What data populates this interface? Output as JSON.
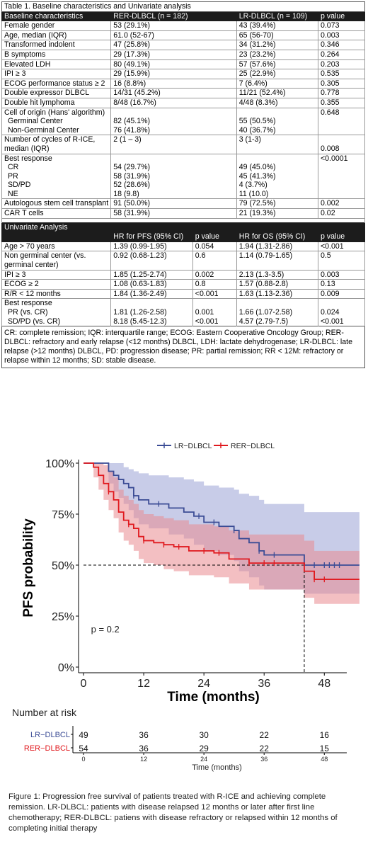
{
  "table": {
    "title": "Table 1. Baseline characteristics and Univariate analysis",
    "baseline_header": [
      "Baseline characteristics",
      "RER-DLBCL  (n = 182)",
      "LR-DLBCL  (n = 109)",
      "p value"
    ],
    "baseline_rows": [
      [
        "Female gender",
        "53 (29.1%)",
        "43 (39.4%)",
        "0.073"
      ],
      [
        "Age, median (IQR)",
        "61.0 (52-67)",
        "65 (56-70)",
        "0.003"
      ],
      [
        "Transformed indolent",
        "47 (25.8%)",
        "34 (31.2%)",
        "0.346"
      ],
      [
        "B symptoms",
        "29 (17.3%)",
        "23 (23.2%)",
        "0.264"
      ],
      [
        "Elevated LDH",
        "80 (49.1%)",
        "57 (57.6%)",
        "0.203"
      ],
      [
        "IPI ≥ 3",
        "29 (15.9%)",
        "25 (22.9%)",
        "0.535"
      ],
      [
        "ECOG performance status ≥ 2",
        "16 (8.8%)",
        "7 (6.4%)",
        "0.305"
      ],
      [
        "Double expressor DLBCL",
        "14/31 (45.2%)",
        "11/21 (52.4%)",
        "0.778"
      ],
      [
        "Double hit lymphoma",
        "8/48 (16.7%)",
        "4/48 (8.3%)",
        "0.355"
      ]
    ],
    "cell_origin": {
      "label": "Cell of origin (Hans' algorithm)",
      "p": "0.648",
      "rows": [
        [
          "Germinal Center",
          "82 (45.1%)",
          "55 (50.5%)"
        ],
        [
          "Non-Germinal Center",
          "76 (41.8%)",
          "40 (36.7%)"
        ]
      ]
    },
    "cycles": [
      "Number  of cycles of R-ICE, median (IQR)",
      "2 (1 – 3)",
      "3 (1-3)",
      "0.008"
    ],
    "best_response": {
      "label": "Best response",
      "p": "<0.0001",
      "rows": [
        [
          "CR",
          "54 (29.7%)",
          "49 (45.0%)"
        ],
        [
          "PR",
          "58 (31.9%)",
          "45 (41.3%)"
        ],
        [
          "SD/PD",
          "52 (28.6%)",
          "4 (3.7%)"
        ],
        [
          "NE",
          "18 (9.8)",
          "11 (10.0)"
        ]
      ]
    },
    "tail_rows": [
      [
        "Autologous stem cell transplant",
        "91 (50.0%)",
        "79 (72.5%)",
        "0.002"
      ],
      [
        "CAR T cells",
        "58 (31.9%)",
        "21 (19.3%)",
        "0.02"
      ]
    ],
    "uni_title": "Univariate Analysis",
    "uni_header": [
      "",
      "HR for PFS (95% CI)",
      "p value",
      "HR for OS (95% CI)",
      "p value"
    ],
    "uni_rows": [
      [
        "Age  > 70 years",
        "1.39 (0.99-1.95)",
        "0.054",
        "1.94 (1.31-2.86)",
        "<0.001"
      ],
      [
        "Non germinal center (vs. germinal center)",
        "0.92 (0.68-1.23)",
        "0.6",
        "1.14 (0.79-1.65)",
        "0.5"
      ],
      [
        "IPI ≥ 3",
        "1.85 (1.25-2.74)",
        "0.002",
        "2.13 (1.3-3.5)",
        "0.003"
      ],
      [
        "ECOG ≥ 2",
        "1.08 (0.63-1.83)",
        "0.8",
        "1.57 (0.88-2.8)",
        "0.13"
      ],
      [
        "R/R < 12 months",
        "1.84 (1.36-2.49)",
        "<0.001",
        "1.63 (1.13-2.36)",
        "0.009"
      ]
    ],
    "uni_best": {
      "label": "Best response",
      "rows": [
        [
          "PR (vs. CR)",
          "1.81 (1.26-2.58)",
          "0.001",
          "1.66 (1.07-2.58)",
          "0.024"
        ],
        [
          "SD/PD (vs. CR)",
          "8.18 (5.45-12.3)",
          "<0.001",
          "4.57 (2.79-7.5)",
          "<0.001"
        ]
      ]
    },
    "footnote": "CR: complete remission; IQR: interquartile range; ECOG:  Eastern Cooperative Oncology Group; RER-DLBCL:  refractory and early relapse (<12 months) DLBCL, LDH:  lactate dehydrogenase; LR-DLBCL:  late relapse (>12 months) DLBCL, PD: progression disease; PR: partial remission; RR < 12M: refractory or relapse within 12 months; SD: stable disease."
  },
  "chart_data": {
    "type": "line",
    "step": true,
    "xlabel": "Time (months)",
    "ylabel": "PFS probability",
    "xlim": [
      0,
      56
    ],
    "ylim": [
      0,
      1
    ],
    "x_ticks": [
      0,
      12,
      24,
      36,
      48
    ],
    "y_ticks": [
      0,
      0.25,
      0.5,
      0.75,
      1.0
    ],
    "y_tick_labels": [
      "0%",
      "25%",
      "50%",
      "75%",
      "100%"
    ],
    "legend_position": "top",
    "annotation": "p = 0.2",
    "median_reference": {
      "y": 0.5,
      "x": 44
    },
    "series": [
      {
        "name": "LR−DLBCL",
        "color": "#3b4c95",
        "band_color": "#9aa3d6",
        "x": [
          0,
          4,
          5,
          6,
          7,
          8,
          9,
          10,
          11,
          13,
          17,
          20,
          22,
          24,
          27,
          30,
          31,
          33,
          35,
          36,
          44,
          55
        ],
        "y": [
          1.0,
          1.0,
          0.96,
          0.94,
          0.92,
          0.9,
          0.88,
          0.84,
          0.82,
          0.8,
          0.78,
          0.76,
          0.74,
          0.71,
          0.69,
          0.67,
          0.63,
          0.61,
          0.57,
          0.55,
          0.5,
          0.5
        ],
        "lower": [
          1.0,
          1.0,
          0.9,
          0.86,
          0.83,
          0.8,
          0.77,
          0.73,
          0.7,
          0.68,
          0.65,
          0.63,
          0.6,
          0.57,
          0.55,
          0.52,
          0.47,
          0.44,
          0.4,
          0.38,
          0.36,
          0.36
        ],
        "upper": [
          1.0,
          1.0,
          1.0,
          1.0,
          1.0,
          0.98,
          0.97,
          0.96,
          0.95,
          0.94,
          0.93,
          0.92,
          0.91,
          0.89,
          0.88,
          0.87,
          0.85,
          0.84,
          0.82,
          0.8,
          0.76,
          0.68
        ],
        "censor_x": [
          10,
          15,
          23,
          26,
          30,
          35,
          38,
          46,
          48,
          49,
          50,
          51
        ]
      },
      {
        "name": "RER−DLBCL",
        "color": "#e0191e",
        "band_color": "#ea8a90",
        "x": [
          0,
          2,
          3,
          4,
          5,
          6,
          7,
          8,
          9,
          10,
          11,
          12,
          14,
          16,
          18,
          21,
          26,
          29,
          33,
          36,
          44,
          46,
          55
        ],
        "y": [
          1.0,
          0.98,
          0.94,
          0.9,
          0.86,
          0.82,
          0.76,
          0.72,
          0.7,
          0.68,
          0.64,
          0.62,
          0.61,
          0.6,
          0.59,
          0.57,
          0.56,
          0.53,
          0.51,
          0.51,
          0.47,
          0.43,
          0.43
        ],
        "lower": [
          1.0,
          0.93,
          0.87,
          0.82,
          0.77,
          0.73,
          0.66,
          0.62,
          0.6,
          0.57,
          0.53,
          0.51,
          0.5,
          0.48,
          0.47,
          0.45,
          0.44,
          0.41,
          0.38,
          0.38,
          0.34,
          0.31,
          0.31
        ],
        "upper": [
          1.0,
          1.0,
          1.0,
          0.99,
          0.96,
          0.93,
          0.87,
          0.84,
          0.82,
          0.8,
          0.77,
          0.75,
          0.74,
          0.73,
          0.72,
          0.7,
          0.69,
          0.67,
          0.65,
          0.65,
          0.62,
          0.57,
          0.57
        ],
        "censor_x": [
          5,
          9,
          12,
          16,
          19,
          24,
          27,
          33,
          36,
          38,
          46,
          48
        ]
      }
    ],
    "risk_table": {
      "title": "Number at risk",
      "xlabel": "Time (months)",
      "times": [
        0,
        12,
        24,
        36,
        48
      ],
      "rows": [
        {
          "name": "LR−DLBCL",
          "color": "#3b4c95",
          "values": [
            49,
            36,
            30,
            22,
            16
          ]
        },
        {
          "name": "RER−DLBCL",
          "color": "#e0191e",
          "values": [
            54,
            36,
            29,
            22,
            15
          ]
        }
      ]
    }
  },
  "caption": "Figure 1: Progression free survival of patients treated with R-ICE and achieving complete remission. LR-DLBCL: patients with disease relapsed 12 months or later after first line chemotherapy; RER-DLBCL: patiens with disease refractory or relapsed within 12 months of completing initial therapy"
}
